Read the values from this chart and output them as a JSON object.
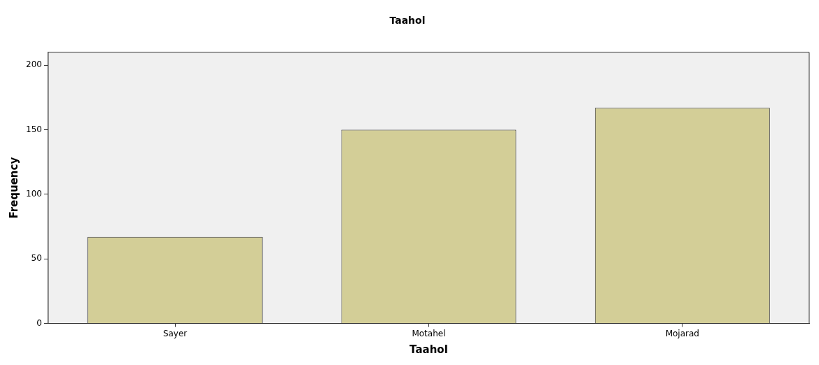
{
  "chart_data": {
    "type": "bar",
    "title": "Taahol",
    "xlabel": "Taahol",
    "ylabel": "Frequency",
    "categories": [
      "Sayer",
      "Motahel",
      "Mojarad"
    ],
    "values": [
      67,
      150,
      167
    ],
    "color": "#d3ce97",
    "ylim": [
      0,
      210
    ],
    "yticks": [
      0,
      50,
      100,
      150,
      200
    ],
    "grid": false,
    "legend": false
  }
}
